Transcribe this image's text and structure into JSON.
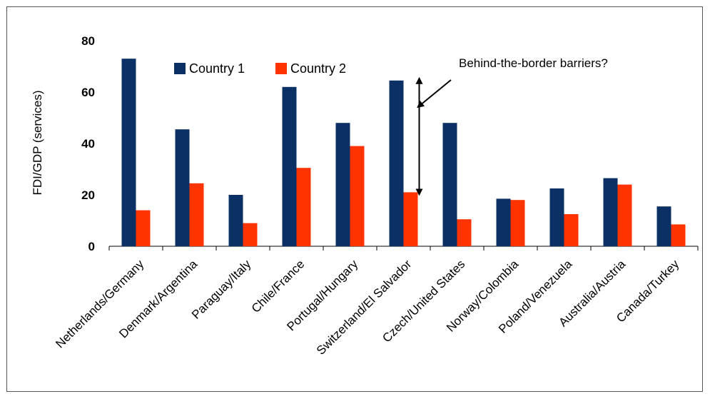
{
  "chart_data": {
    "type": "bar",
    "categories": [
      "Netherlands/Germany",
      "Denmark/Argentina",
      "Paraguay/Italy",
      "Chile/France",
      "Portugal/Hungary",
      "Switzerland/El Salvador",
      "Czech/United States",
      "Norway/Colombia",
      "Poland/Venezuela",
      "Australia/Austria",
      "Canada/Turkey"
    ],
    "series": [
      {
        "name": "Country 1",
        "color": "#0a3066",
        "values": [
          73,
          45.5,
          20,
          62,
          48,
          64.5,
          48,
          18.5,
          22.5,
          26.5,
          15.5
        ]
      },
      {
        "name": "Country 2",
        "color": "#ff3300",
        "values": [
          14,
          24.5,
          9,
          30.5,
          39,
          21,
          10.5,
          18,
          12.5,
          24,
          8.5
        ]
      }
    ],
    "ylabel": "FDI/GDP (services)",
    "xlabel": "",
    "ylim": [
      0,
      80
    ],
    "yticks": [
      0,
      20,
      40,
      60,
      80
    ],
    "grid": false,
    "legend_position": "top-left",
    "annotation": {
      "text": "Behind-the-border barriers?",
      "arrow_category": "Switzerland/El Salvador",
      "arrow_from": 21,
      "arrow_to": 64.5
    }
  }
}
